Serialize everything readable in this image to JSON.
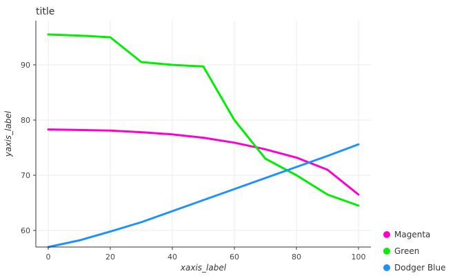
{
  "chart_data": {
    "type": "line",
    "title": "title",
    "xlabel": "xaxis_label",
    "ylabel": "yaxis_label",
    "xlim": [
      -4,
      104
    ],
    "ylim": [
      57,
      98
    ],
    "x_ticks": [
      0,
      20,
      40,
      60,
      80,
      100
    ],
    "y_ticks": [
      60,
      70,
      80,
      90
    ],
    "grid": true,
    "legend_position": "right",
    "series": [
      {
        "name": "Magenta",
        "color": "#ff00cc",
        "x": [
          0,
          10,
          20,
          30,
          40,
          50,
          60,
          70,
          80,
          90,
          100
        ],
        "y": [
          78.3,
          78.2,
          78.1,
          77.8,
          77.4,
          76.8,
          75.9,
          74.7,
          73.2,
          71.0,
          66.5
        ]
      },
      {
        "name": "Green",
        "color": "#00ee00",
        "x": [
          0,
          10,
          20,
          30,
          40,
          50,
          60,
          70,
          80,
          90,
          100
        ],
        "y": [
          95.5,
          95.3,
          95.0,
          90.5,
          90.0,
          89.7,
          80.0,
          73.0,
          70.0,
          66.5,
          64.5
        ]
      },
      {
        "name": "Dodger Blue",
        "color": "#1e90ff",
        "x": [
          0,
          10,
          20,
          30,
          40,
          50,
          60,
          70,
          80,
          90,
          100
        ],
        "y": [
          57.0,
          58.2,
          59.8,
          61.5,
          63.5,
          65.5,
          67.5,
          69.5,
          71.5,
          73.5,
          75.6
        ]
      }
    ]
  }
}
